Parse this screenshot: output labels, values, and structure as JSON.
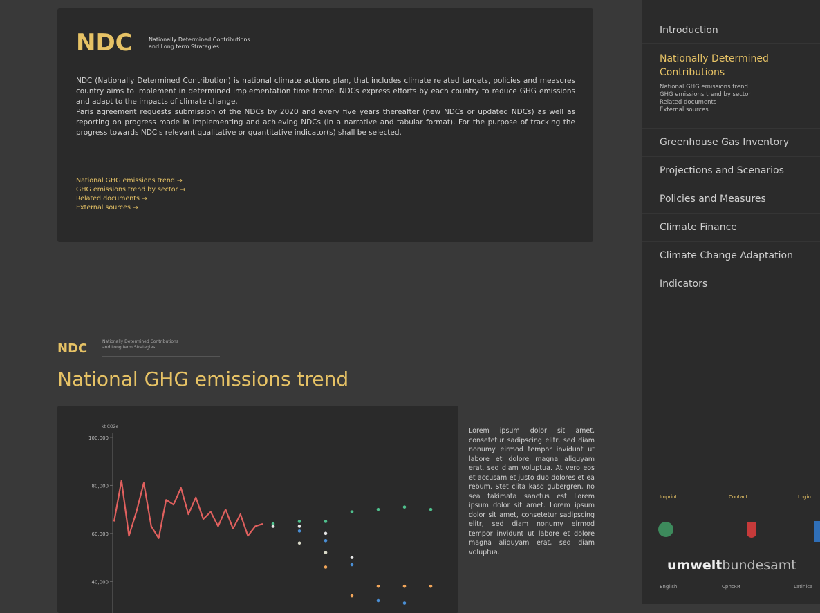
{
  "header": {
    "logo": "NDC",
    "subtitle_1": "Nationally Determined Contributions",
    "subtitle_2": "and Long term Strategies"
  },
  "intro": {
    "paragraphs": [
      "NDC (Nationally Determined Contribution) is national climate actions plan, that includes climate related targets, policies and measures country aims to implement in determined implementation time frame. NDCs express efforts by each country to reduce GHG emissions and adapt to the impacts of climate change.",
      "Paris agreement requests submission of the NDCs by 2020 and every five years thereafter (new NDCs or updated NDCs) as well as reporting on progress made in implementing and achieving NDCs (in a narrative and tabular format). For the purpose of tracking the progress towards NDC's relevant qualitative or quantitative indicator(s) shall be selected."
    ],
    "links": [
      "National GHG emissions trend →",
      "GHG emissions trend by sector →",
      "Related documents →",
      "External sources →"
    ]
  },
  "section": {
    "logo": "NDC",
    "subtitle_1": "Nationally Determined Contributions",
    "subtitle_2": "and Long term Strategies",
    "title": "National GHG emissions trend",
    "text": "Lorem ipsum dolor sit amet, consetetur sadipscing elitr, sed diam nonumy eirmod tempor invidunt ut labore et dolore magna aliquyam erat, sed diam voluptua. At vero eos et accusam et justo duo dolores et ea rebum. Stet clita kasd gubergren, no sea takimata sanctus est Lorem ipsum dolor sit amet. Lorem ipsum dolor sit amet, consetetur sadipscing elitr, sed diam nonumy eirmod tempor invidunt ut labore et dolore magna aliquyam erat, sed diam voluptua."
  },
  "chart_data": {
    "type": "line",
    "y_label": "kt CO2e",
    "ylim": [
      30000,
      100000
    ],
    "yticks": [
      {
        "value": 100000,
        "label": "100,000"
      },
      {
        "value": 80000,
        "label": "80,000"
      },
      {
        "value": 60000,
        "label": "60,000"
      },
      {
        "value": 40000,
        "label": "40,000"
      }
    ],
    "line": {
      "color": "#e0605e",
      "values": [
        65000,
        82000,
        59000,
        69000,
        81000,
        63000,
        58000,
        74000,
        72000,
        79000,
        68000,
        75000,
        66000,
        69000,
        63000,
        70000,
        62000,
        68000,
        59000,
        63000,
        64000
      ]
    },
    "points": [
      {
        "color": "#4fc08d",
        "values": [
          64000,
          65000,
          65000,
          69000,
          70000,
          71000,
          70000
        ]
      },
      {
        "color": "#e6e6e6",
        "values": [
          63000,
          63000,
          60000,
          50000,
          null,
          null,
          null
        ]
      },
      {
        "color": "#d9d9c8",
        "values": [
          null,
          56000,
          52000,
          null,
          null,
          null,
          null
        ]
      },
      {
        "color": "#4a8fd6",
        "values": [
          null,
          61000,
          57000,
          47000,
          32000,
          31000,
          null
        ]
      },
      {
        "color": "#f2a65a",
        "values": [
          null,
          null,
          46000,
          34000,
          38000,
          38000,
          38000
        ]
      }
    ]
  },
  "nav": {
    "items": [
      "Introduction",
      "Nationally Determined Contributions",
      "Greenhouse Gas Inventory",
      "Projections and Scenarios",
      "Policies and Measures",
      "Climate Finance",
      "Climate Change Adaptation",
      "Indicators"
    ],
    "subitems": [
      "National GHG emissions trend",
      "GHG emissions trend by sector",
      "Related documents",
      "External sources"
    ]
  },
  "footer": {
    "links": [
      "Imprint",
      "Contact",
      "Login"
    ],
    "brand_bold": "umwelt",
    "brand_light": "bundesamt",
    "languages": [
      "English",
      "Српски",
      "Latinica"
    ]
  }
}
